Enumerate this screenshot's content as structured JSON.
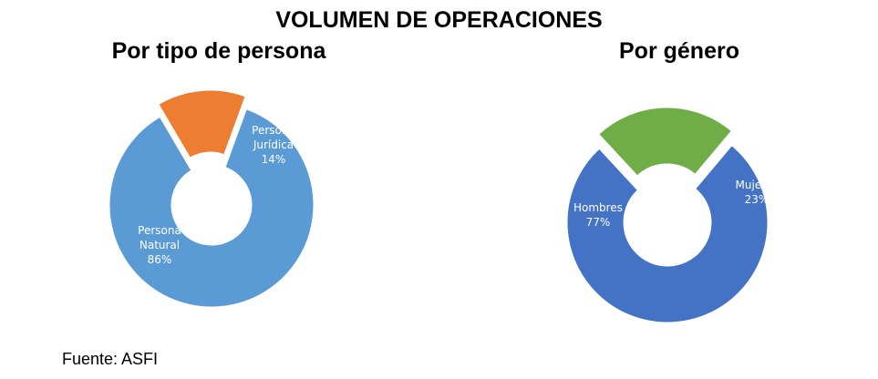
{
  "title": "VOLUMEN DE OPERACIONES",
  "source": "Fuente: ASFI",
  "chart_data": [
    {
      "type": "pie",
      "subtitle": "Por tipo de persona",
      "categories": [
        "Persona Natural",
        "Persona Jurídica"
      ],
      "values": [
        86,
        14
      ],
      "label_lines": [
        [
          "Persona",
          "Natural",
          "86%"
        ],
        [
          "Persona",
          "Jurídica",
          "14%"
        ]
      ],
      "colors": [
        "#5b9bd5",
        "#ed7d31"
      ],
      "exploded": [
        false,
        true
      ],
      "legend": "none"
    },
    {
      "type": "pie",
      "subtitle": "Por género",
      "categories": [
        "Hombres",
        "Mujeres"
      ],
      "values": [
        77,
        23
      ],
      "label_lines": [
        [
          "Hombres",
          "77%"
        ],
        [
          "Mujeres",
          "23%"
        ]
      ],
      "colors": [
        "#4472c4",
        "#70ad47"
      ],
      "exploded": [
        false,
        true
      ],
      "legend": "none"
    }
  ]
}
